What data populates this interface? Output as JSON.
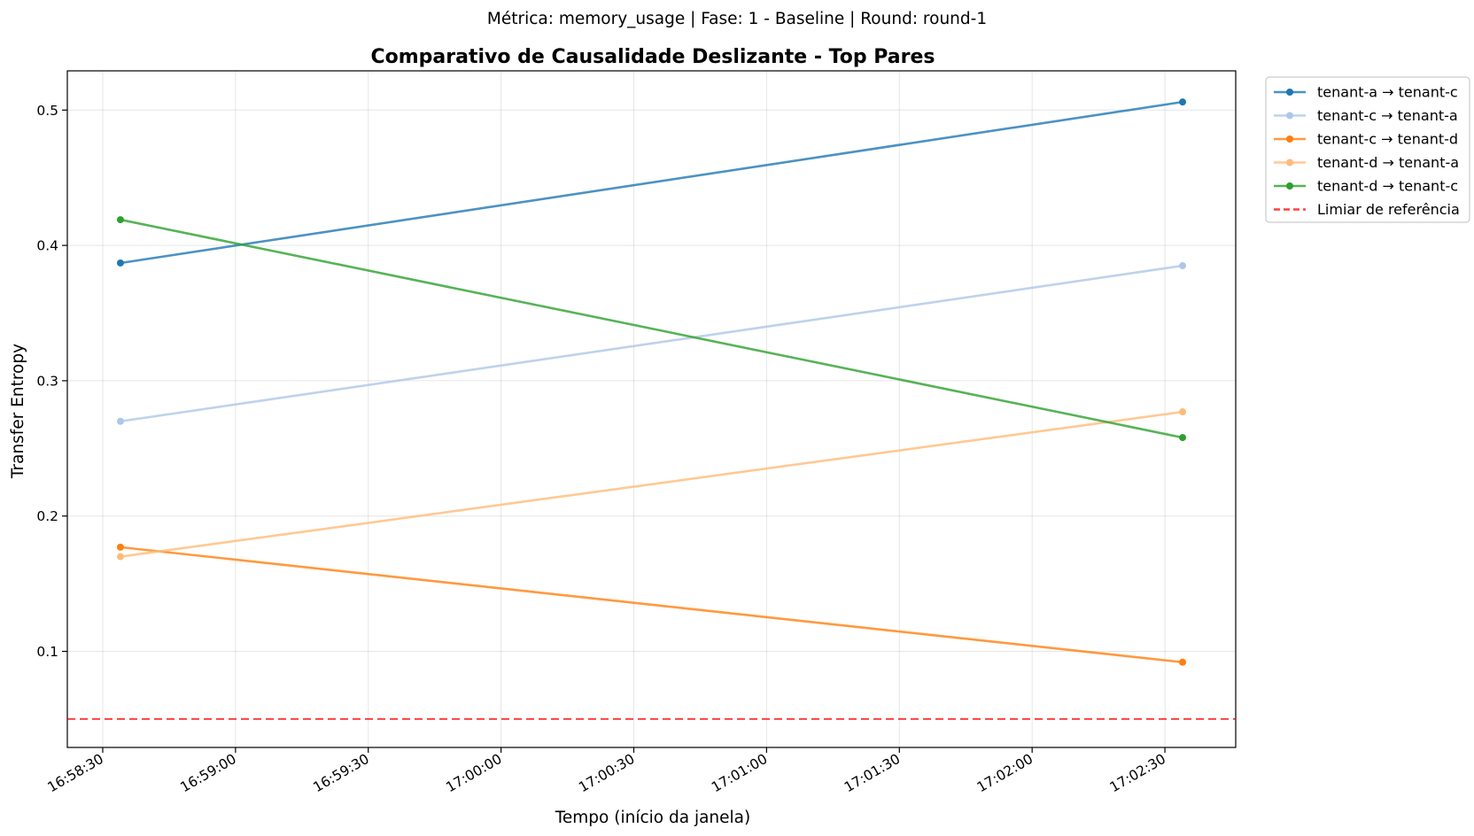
{
  "suptitle": "Métrica: memory_usage | Fase: 1 - Baseline | Round: round-1",
  "chart_data": {
    "type": "line",
    "title": "Comparativo de Causalidade Deslizante - Top Pares",
    "xlabel": "Tempo (início da janela)",
    "ylabel": "Transfer Entropy",
    "x_ticks": [
      "16:58:30",
      "16:59:00",
      "16:59:30",
      "17:00:00",
      "17:00:30",
      "17:01:00",
      "17:01:30",
      "17:02:00",
      "17:02:30"
    ],
    "y_ticks": [
      "0.1",
      "0.2",
      "0.3",
      "0.4",
      "0.5"
    ],
    "xlim": [
      "16:58:22",
      "17:02:46"
    ],
    "ylim": [
      0.029,
      0.529
    ],
    "x": [
      "16:58:34",
      "17:02:34"
    ],
    "grid": true,
    "legend_position": "outside top-right",
    "series": [
      {
        "name": "tenant-a → tenant-c",
        "color": "#1f77b4",
        "values": [
          0.387,
          0.506
        ]
      },
      {
        "name": "tenant-c → tenant-a",
        "color": "#aec7e8",
        "values": [
          0.27,
          0.385
        ]
      },
      {
        "name": "tenant-c → tenant-d",
        "color": "#ff7f0e",
        "values": [
          0.177,
          0.092
        ]
      },
      {
        "name": "tenant-d → tenant-a",
        "color": "#ffbb78",
        "values": [
          0.17,
          0.277
        ]
      },
      {
        "name": "tenant-d → tenant-c",
        "color": "#2ca02c",
        "values": [
          0.419,
          0.258
        ]
      }
    ],
    "reference_line": {
      "name": "Limiar de referência",
      "value": 0.05,
      "color": "#ff0000",
      "style": "dashed"
    }
  }
}
